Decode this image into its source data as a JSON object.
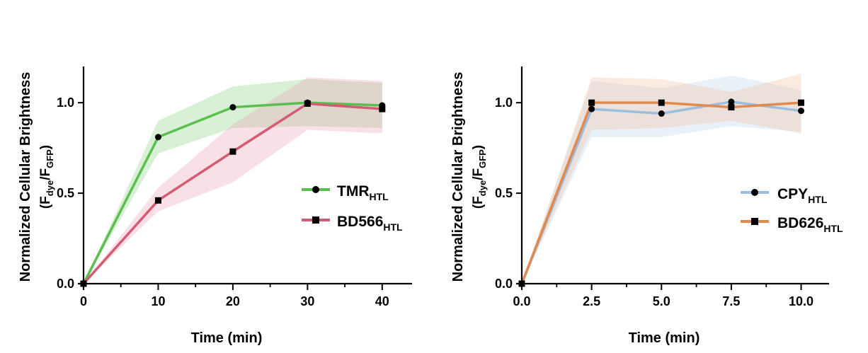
{
  "chart_data": [
    {
      "type": "line",
      "xlabel": "Time (min)",
      "ylabel": {
        "main": "Normalized Cellular Brightness",
        "ratio": {
          "num": "F",
          "num_sub": "dye",
          "slash": "/",
          "den": "F",
          "den_sub": "GFP"
        }
      },
      "xlim": [
        0,
        44
      ],
      "ylim": [
        0,
        1.2
      ],
      "xticks": [
        0,
        10,
        20,
        30,
        40
      ],
      "xtick_labels": [
        "0",
        "10",
        "20",
        "30",
        "40"
      ],
      "xticks_minor": [
        5,
        15,
        25,
        35
      ],
      "yticks": [
        0,
        0.5,
        1.0
      ],
      "ytick_labels": [
        "0.0",
        "0.5",
        "1.0"
      ],
      "legend_position": "right-middle",
      "series": [
        {
          "name": "TMR",
          "name_sub": "HTL",
          "color": "#5bbf4f",
          "band_color": "#8fd487",
          "marker": "circle",
          "x": [
            0,
            10,
            20,
            30,
            40
          ],
          "y": [
            0.0,
            0.81,
            0.975,
            1.0,
            0.985
          ],
          "lower": [
            0.0,
            0.72,
            0.86,
            0.87,
            0.86
          ],
          "upper": [
            0.0,
            0.9,
            1.09,
            1.13,
            1.11
          ]
        },
        {
          "name": "BD566",
          "name_sub": "HTL",
          "color": "#d35c74",
          "band_color": "#eba6b6",
          "marker": "square",
          "x": [
            0,
            10,
            20,
            30,
            40
          ],
          "y": [
            0.0,
            0.46,
            0.73,
            0.995,
            0.965
          ],
          "lower": [
            0.0,
            0.4,
            0.56,
            0.85,
            0.83
          ],
          "upper": [
            0.0,
            0.53,
            0.88,
            1.14,
            1.12
          ]
        }
      ]
    },
    {
      "type": "line",
      "xlabel": "Time (min)",
      "ylabel": {
        "main": "Normalized Cellular Brightness",
        "ratio": {
          "num": "F",
          "num_sub": "dye",
          "slash": "/",
          "den": "F",
          "den_sub": "GFP"
        }
      },
      "xlim": [
        0,
        11
      ],
      "ylim": [
        0,
        1.2
      ],
      "xticks": [
        0,
        2.5,
        5,
        7.5,
        10
      ],
      "xtick_labels": [
        "0.0",
        "2.5",
        "5.0",
        "7.5",
        "10.0"
      ],
      "xticks_minor": [
        1.25,
        3.75,
        6.25,
        8.75
      ],
      "yticks": [
        0,
        0.5,
        1.0
      ],
      "ytick_labels": [
        "0.0",
        "0.5",
        "1.0"
      ],
      "legend_position": "right-middle",
      "series": [
        {
          "name": "CPY",
          "name_sub": "HTL",
          "color": "#9bbfe0",
          "band_color": "#bdd3ec",
          "marker": "circle",
          "x": [
            0,
            2.5,
            5,
            7.5,
            10
          ],
          "y": [
            0.0,
            0.965,
            0.94,
            1.005,
            0.955
          ],
          "lower": [
            0.0,
            0.81,
            0.81,
            0.87,
            0.84
          ],
          "upper": [
            0.0,
            1.12,
            1.08,
            1.15,
            1.07
          ]
        },
        {
          "name": "BD626",
          "name_sub": "HTL",
          "color": "#e08a50",
          "band_color": "#f2c4a2",
          "marker": "square",
          "x": [
            0,
            2.5,
            5,
            7.5,
            10
          ],
          "y": [
            0.0,
            1.0,
            1.0,
            0.975,
            1.0
          ],
          "lower": [
            0.0,
            0.85,
            0.86,
            0.9,
            0.83
          ],
          "upper": [
            0.0,
            1.14,
            1.13,
            1.06,
            1.16
          ]
        }
      ]
    }
  ]
}
